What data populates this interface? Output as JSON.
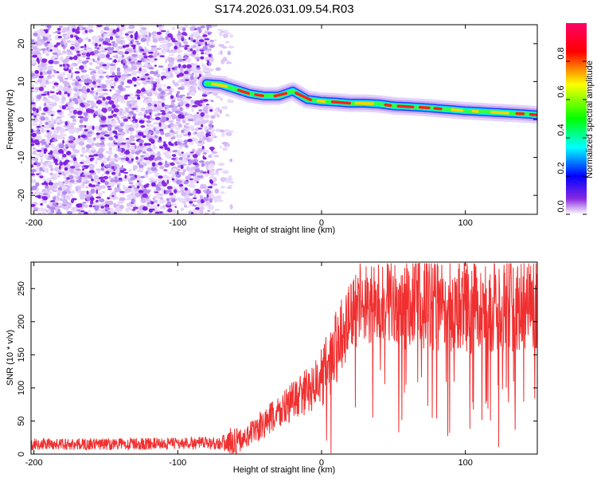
{
  "chart_data": [
    {
      "type": "heatmap",
      "title": "S174.2026.031.09.54.R03",
      "xlabel": "Height of straight line (km)",
      "ylabel": "Frequency (Hz)",
      "xlim": [
        -202,
        150
      ],
      "ylim": [
        -25,
        25
      ],
      "xticks": [
        -200,
        -100,
        0,
        100
      ],
      "yticks": [
        -20,
        -10,
        0,
        10,
        20
      ],
      "colorbar": {
        "label": "Normalized spectral amplitude",
        "range": [
          0,
          1
        ],
        "ticks": [
          0.0,
          0.2,
          0.4,
          0.6,
          0.8
        ],
        "colors": [
          "#ffffff",
          "#8a2be2",
          "#0000ff",
          "#00ffff",
          "#00ff00",
          "#ffff00",
          "#ff0000",
          "#ff0066"
        ]
      },
      "noise_region_x": [
        -202,
        -70
      ],
      "ridge": {
        "x": [
          -80,
          -70,
          -60,
          -50,
          -40,
          -30,
          -20,
          -10,
          0,
          10,
          20,
          30,
          40,
          50,
          60,
          70,
          80,
          90,
          100,
          110,
          120,
          130,
          140,
          150
        ],
        "y": [
          9.5,
          9.2,
          8.0,
          6.8,
          6.2,
          6.2,
          7.5,
          5.3,
          4.8,
          4.6,
          4.3,
          4.3,
          4.1,
          3.6,
          3.4,
          3.2,
          2.9,
          2.6,
          2.3,
          2.1,
          1.9,
          1.7,
          1.5,
          1.2
        ]
      }
    },
    {
      "type": "line",
      "xlabel": "Height of straight line (km)",
      "ylabel": "SNR (10 * v/v)",
      "xlim": [
        -202,
        150
      ],
      "ylim": [
        0,
        290
      ],
      "xticks": [
        -200,
        -100,
        0,
        100
      ],
      "yticks": [
        0,
        50,
        100,
        150,
        200,
        250
      ],
      "color": "#f03030",
      "envelope": {
        "x": [
          -202,
          -150,
          -100,
          -70,
          -62,
          -55,
          -40,
          -20,
          -10,
          0,
          10,
          20,
          30,
          50,
          80,
          100,
          120,
          150
        ],
        "mean": [
          15,
          15,
          16,
          17,
          18,
          22,
          45,
          80,
          95,
          115,
          160,
          210,
          225,
          228,
          225,
          222,
          220,
          225
        ],
        "amplitude": [
          9,
          9,
          9,
          10,
          25,
          15,
          25,
          30,
          35,
          45,
          60,
          55,
          60,
          70,
          70,
          70,
          70,
          70
        ]
      }
    }
  ]
}
